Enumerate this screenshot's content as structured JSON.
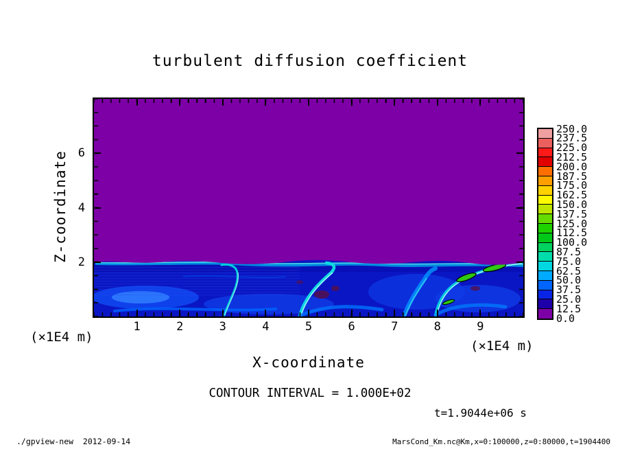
{
  "title": "turbulent diffusion coefficient",
  "plot": {
    "x_axis": {
      "label": "X-coordinate",
      "unit": "(×1E4 m)",
      "tick_labels": [
        "1",
        "2",
        "3",
        "4",
        "5",
        "6",
        "7",
        "8",
        "9"
      ],
      "range_min": 0,
      "range_max": 10
    },
    "z_axis": {
      "label": "Z-coordinate",
      "unit": "(×1E4 m)",
      "tick_labels": [
        "2",
        "4",
        "6"
      ],
      "range_min": 0,
      "range_max": 8
    }
  },
  "colorbar": {
    "labels_top_to_bottom": [
      "250.0",
      "237.5",
      "225.0",
      "212.5",
      "200.0",
      "187.5",
      "175.0",
      "162.5",
      "150.0",
      "137.5",
      "125.0",
      "112.5",
      "100.0",
      "87.5",
      "75.0",
      "62.5",
      "50.0",
      "37.5",
      "25.0",
      "12.5",
      "0.0"
    ],
    "colors_top_to_bottom": [
      "#f0a0a0",
      "#eb5f5f",
      "#ff1919",
      "#e10000",
      "#ff6e00",
      "#ffa000",
      "#ffd200",
      "#fffa00",
      "#bee600",
      "#64dc00",
      "#1ed200",
      "#00c819",
      "#00d25f",
      "#00dcaa",
      "#00d7e1",
      "#00aaff",
      "#0064ff",
      "#0a24e6",
      "#1e00aa",
      "#7c00a6"
    ]
  },
  "annotations": {
    "contour_interval": "CONTOUR INTERVAL = 1.000E+02",
    "time": "t=1.9044e+06 s"
  },
  "footer": {
    "left": "./gpview-new  2012-09-14",
    "right": "MarsCond_Km.nc@Km,x=0:100000,z=0:80000,t=1904400"
  },
  "chart_data": {
    "type": "heatmap",
    "title": "turbulent diffusion coefficient",
    "xlabel": "X-coordinate (×1E4 m)",
    "ylabel": "Z-coordinate (×1E4 m)",
    "xlim": [
      0,
      100000
    ],
    "ylim": [
      0,
      80000
    ],
    "time_seconds": 1904400,
    "contour_interval": 100.0,
    "fill_interval": 12.5,
    "levels": [
      0,
      12.5,
      25,
      37.5,
      50,
      62.5,
      75,
      87.5,
      100,
      112.5,
      125,
      137.5,
      150,
      162.5,
      175,
      187.5,
      200,
      212.5,
      225,
      237.5,
      250
    ],
    "palette_bottom_to_top": [
      "#7c00a6",
      "#1e00aa",
      "#0a24e6",
      "#0064ff",
      "#00aaff",
      "#00d7e1",
      "#00dcaa",
      "#00d25f",
      "#00c819",
      "#1ed200",
      "#64dc00",
      "#bee600",
      "#fffa00",
      "#ffd200",
      "#ffa000",
      "#ff6e00",
      "#e10000",
      "#ff1919",
      "#eb5f5f",
      "#f0a0a0"
    ],
    "field_description": [
      {
        "region": "z ≈ 20000–80000 m (upper three quarters of domain)",
        "value_range": [
          0,
          12.5
        ],
        "appearance": "uniform purple background"
      },
      {
        "region": "z < ~20000 m boundary layer",
        "value_range": [
          12.5,
          87.5
        ],
        "appearance": "turbulent eddies, plumes and filaments in dark blue, blue and cyan"
      },
      {
        "region": "thin wavy cap at z ≈ 20000 m",
        "value_range": [
          62.5,
          100
        ],
        "appearance": "bright cyan line along top of boundary layer with short black contour dashes near x ≈ 30000 m"
      },
      {
        "region": "spots near x ≈ 80000–95000 m, z ≈ 10000–18000 m",
        "value_range": [
          100,
          137.5
        ],
        "appearance": "elongated green blobs enclosed by black 100-level contour lines"
      }
    ]
  }
}
